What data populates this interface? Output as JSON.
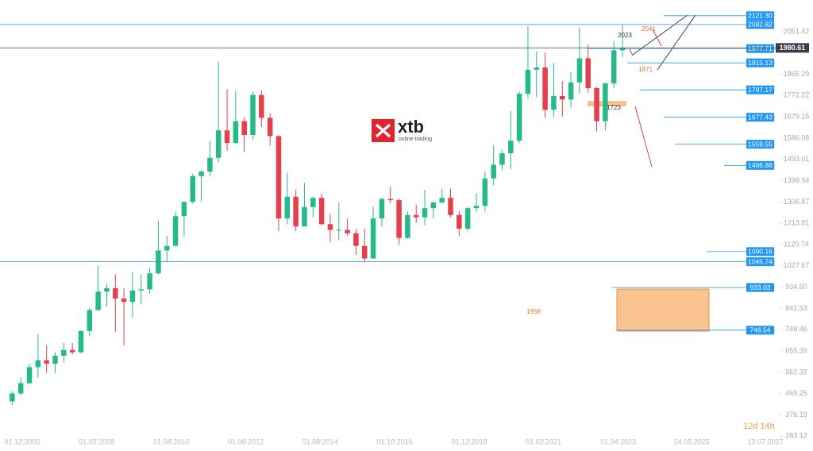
{
  "chart_data": {
    "type": "candlestick",
    "x": [
      2005.625,
      2005.875,
      2006.125,
      2006.375,
      2006.625,
      2006.875,
      2007.125,
      2007.375,
      2007.625,
      2007.875,
      2008.125,
      2008.375,
      2008.625,
      2008.875,
      2009.125,
      2009.375,
      2009.625,
      2009.875,
      2010.125,
      2010.375,
      2010.625,
      2010.875,
      2011.125,
      2011.375,
      2011.625,
      2011.875,
      2012.125,
      2012.375,
      2012.625,
      2012.875,
      2013.125,
      2013.375,
      2013.625,
      2013.875,
      2014.125,
      2014.375,
      2014.625,
      2014.875,
      2015.125,
      2015.375,
      2015.625,
      2015.875,
      2016.125,
      2016.375,
      2016.625,
      2016.875,
      2017.125,
      2017.375,
      2017.625,
      2017.875,
      2018.125,
      2018.375,
      2018.625,
      2018.875,
      2019.125,
      2019.375,
      2019.625,
      2019.875,
      2020.125,
      2020.375,
      2020.625,
      2020.875,
      2021.125,
      2021.375,
      2021.625,
      2021.875,
      2022.125,
      2022.375,
      2022.625,
      2022.875,
      2023.125,
      2023.375
    ],
    "open": [
      435,
      470,
      515,
      585,
      615,
      600,
      635,
      660,
      650,
      743,
      835,
      915,
      930,
      885,
      870,
      920,
      925,
      995,
      1095,
      1115,
      1245,
      1307,
      1420,
      1440,
      1500,
      1620,
      1565,
      1660,
      1600,
      1775,
      1675,
      1595,
      1235,
      1330,
      1200,
      1285,
      1325,
      1210,
      1185,
      1185,
      1170,
      1115,
      1060,
      1235,
      1320,
      1315,
      1150,
      1250,
      1240,
      1280,
      1305,
      1325,
      1250,
      1190,
      1280,
      1290,
      1410,
      1470,
      1520,
      1575,
      1780,
      1885,
      1895,
      1710,
      1770,
      1755,
      1830,
      1935,
      1805,
      1660,
      1825,
      1970
    ],
    "high": [
      480,
      540,
      600,
      730,
      680,
      650,
      690,
      690,
      745,
      845,
      1030,
      950,
      990,
      930,
      1000,
      990,
      1020,
      1225,
      1160,
      1265,
      1310,
      1430,
      1445,
      1575,
      1920,
      1800,
      1790,
      1680,
      1790,
      1795,
      1695,
      1600,
      1435,
      1360,
      1390,
      1330,
      1345,
      1255,
      1305,
      1235,
      1190,
      1190,
      1285,
      1325,
      1375,
      1320,
      1265,
      1295,
      1360,
      1310,
      1365,
      1365,
      1265,
      1285,
      1345,
      1440,
      1555,
      1535,
      1705,
      1790,
      2075,
      1965,
      1960,
      1915,
      1835,
      1875,
      2070,
      1995,
      1810,
      1830,
      2010,
      2080
    ],
    "low": [
      420,
      460,
      510,
      540,
      560,
      560,
      605,
      640,
      645,
      720,
      830,
      850,
      740,
      680,
      800,
      860,
      905,
      990,
      1045,
      1115,
      1155,
      1300,
      1310,
      1420,
      1480,
      1530,
      1560,
      1525,
      1580,
      1635,
      1555,
      1180,
      1210,
      1180,
      1200,
      1240,
      1205,
      1130,
      1140,
      1160,
      1075,
      1045,
      1060,
      1200,
      1300,
      1120,
      1145,
      1215,
      1205,
      1235,
      1300,
      1240,
      1160,
      1180,
      1265,
      1265,
      1380,
      1445,
      1450,
      1565,
      1760,
      1765,
      1675,
      1675,
      1680,
      1720,
      1780,
      1785,
      1615,
      1620,
      1805,
      1940
    ],
    "close": [
      470,
      515,
      585,
      615,
      600,
      635,
      660,
      650,
      743,
      835,
      915,
      930,
      885,
      870,
      920,
      925,
      995,
      1095,
      1115,
      1245,
      1307,
      1420,
      1440,
      1500,
      1620,
      1565,
      1660,
      1600,
      1775,
      1675,
      1595,
      1235,
      1330,
      1200,
      1285,
      1325,
      1210,
      1185,
      1185,
      1170,
      1115,
      1060,
      1235,
      1320,
      1315,
      1150,
      1250,
      1240,
      1280,
      1305,
      1325,
      1250,
      1190,
      1280,
      1290,
      1410,
      1470,
      1520,
      1575,
      1780,
      1885,
      1895,
      1710,
      1770,
      1755,
      1830,
      1935,
      1805,
      1660,
      1825,
      1970,
      1980
    ],
    "up_color": "#26b98a",
    "down_color": "#e2404a",
    "xlim": [
      2005.27,
      2027.9
    ],
    "ylim": [
      260,
      2190
    ],
    "xticks": [
      {
        "value": 2005.92,
        "label": "01.12.2005"
      },
      {
        "value": 2008.08,
        "label": "01.02.2008"
      },
      {
        "value": 2010.25,
        "label": "01.04.2010"
      },
      {
        "value": 2012.42,
        "label": "01.06.2012"
      },
      {
        "value": 2014.58,
        "label": "01.08.2014"
      },
      {
        "value": 2016.75,
        "label": "01.10.2016"
      },
      {
        "value": 2018.92,
        "label": "01.12.2018"
      },
      {
        "value": 2021.08,
        "label": "01.02.2021"
      },
      {
        "value": 2023.25,
        "label": "01.04.2023"
      },
      {
        "value": 2025.39,
        "label": "24.05.2025"
      },
      {
        "value": 2027.53,
        "label": "13.07.2027"
      }
    ],
    "yticks": [
      2051.42,
      1865.29,
      1772.22,
      1679.15,
      1586.08,
      1493.01,
      1399.94,
      1306.87,
      1213.81,
      1120.74,
      1027.67,
      {
        "value": 934.6,
        "label": "934.60"
      },
      841.53,
      748.46,
      655.39,
      562.32,
      469.25,
      376.19,
      283.12
    ],
    "level_color": "#2196f3",
    "levels": [
      {
        "value": 2121.3,
        "label": "2121.30",
        "from": 2024.58
      },
      {
        "value": 2082.82,
        "from": 2005.27
      },
      {
        "value": 1977.71,
        "from": 2022.36
      },
      {
        "value": 1915.13,
        "from": 2023.51
      },
      {
        "value": 1797.17,
        "from": 2023.88
      },
      {
        "value": 1677.43,
        "from": 2024.58
      },
      {
        "value": 1559.55,
        "from": 2024.9
      },
      {
        "value": 1466.88,
        "from": 2026.33
      },
      {
        "value": 1090.16,
        "from": 2025.82
      },
      {
        "value": 1045.74,
        "from": 2005.27
      },
      {
        "value": 933.02,
        "from": 2023.05
      },
      {
        "value": 746.54,
        "from": 2023.22
      }
    ],
    "current_price": 1980.61,
    "annotations": [
      {
        "text": "2023",
        "color": "#2b3a55"
      },
      {
        "text": "2041",
        "color": "#e8772e"
      },
      {
        "text": "1871",
        "color": "#e8772e"
      },
      {
        "text": "1723",
        "color": "#2b3a55"
      },
      {
        "text": "1958",
        "color": "#e8772e"
      }
    ]
  },
  "logo": {
    "name": "xtb",
    "tagline": "online trading"
  },
  "timer": "12d 14h"
}
